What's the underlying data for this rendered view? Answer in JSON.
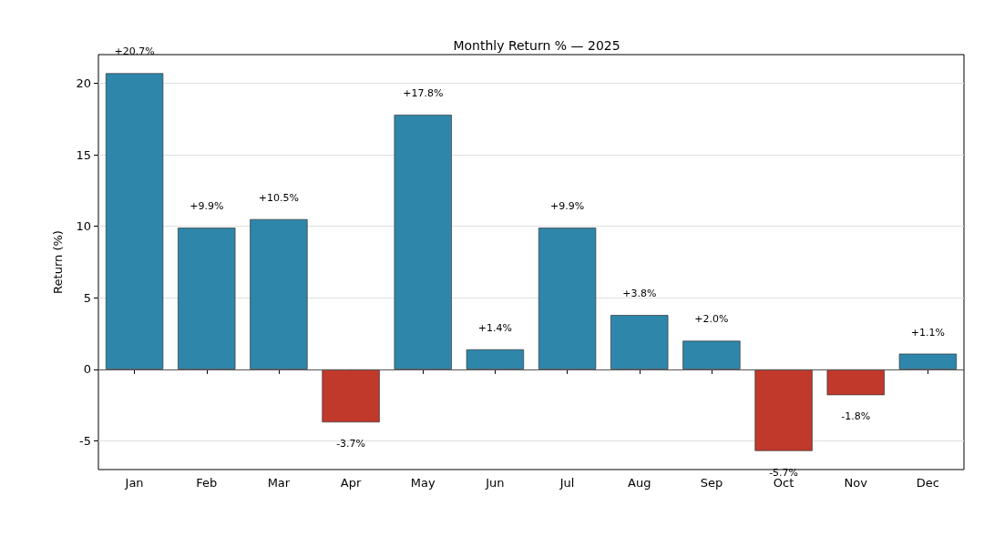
{
  "chart_data": {
    "type": "bar",
    "title": "Monthly Return % — 2025",
    "ylabel": "Return (%)",
    "categories": [
      "Jan",
      "Feb",
      "Mar",
      "Apr",
      "May",
      "Jun",
      "Jul",
      "Aug",
      "Sep",
      "Oct",
      "Nov",
      "Dec"
    ],
    "values": [
      20.7,
      9.9,
      10.5,
      -3.7,
      17.8,
      1.4,
      9.9,
      3.8,
      2.0,
      -5.7,
      -1.8,
      1.1
    ],
    "colors": [
      "#2e86ab",
      "#2e86ab",
      "#2e86ab",
      "#c0392b",
      "#2e86ab",
      "#2e86ab",
      "#2e86ab",
      "#2e86ab",
      "#2e86ab",
      "#c0392b",
      "#c0392b",
      "#2e86ab"
    ],
    "value_labels": [
      "+20.7%",
      "+9.9%",
      "+10.5%",
      "-3.7%",
      "+17.8%",
      "+1.4%",
      "+9.9%",
      "+3.8%",
      "+2.0%",
      "-5.7%",
      "-1.8%",
      "+1.1%"
    ],
    "ylim": [
      -7,
      22
    ],
    "yticks": [
      -5,
      0,
      5,
      10,
      15,
      20
    ],
    "grid": "y",
    "ref_lines": [
      {
        "axis": "y",
        "value": 0,
        "color": "#555555"
      }
    ]
  }
}
